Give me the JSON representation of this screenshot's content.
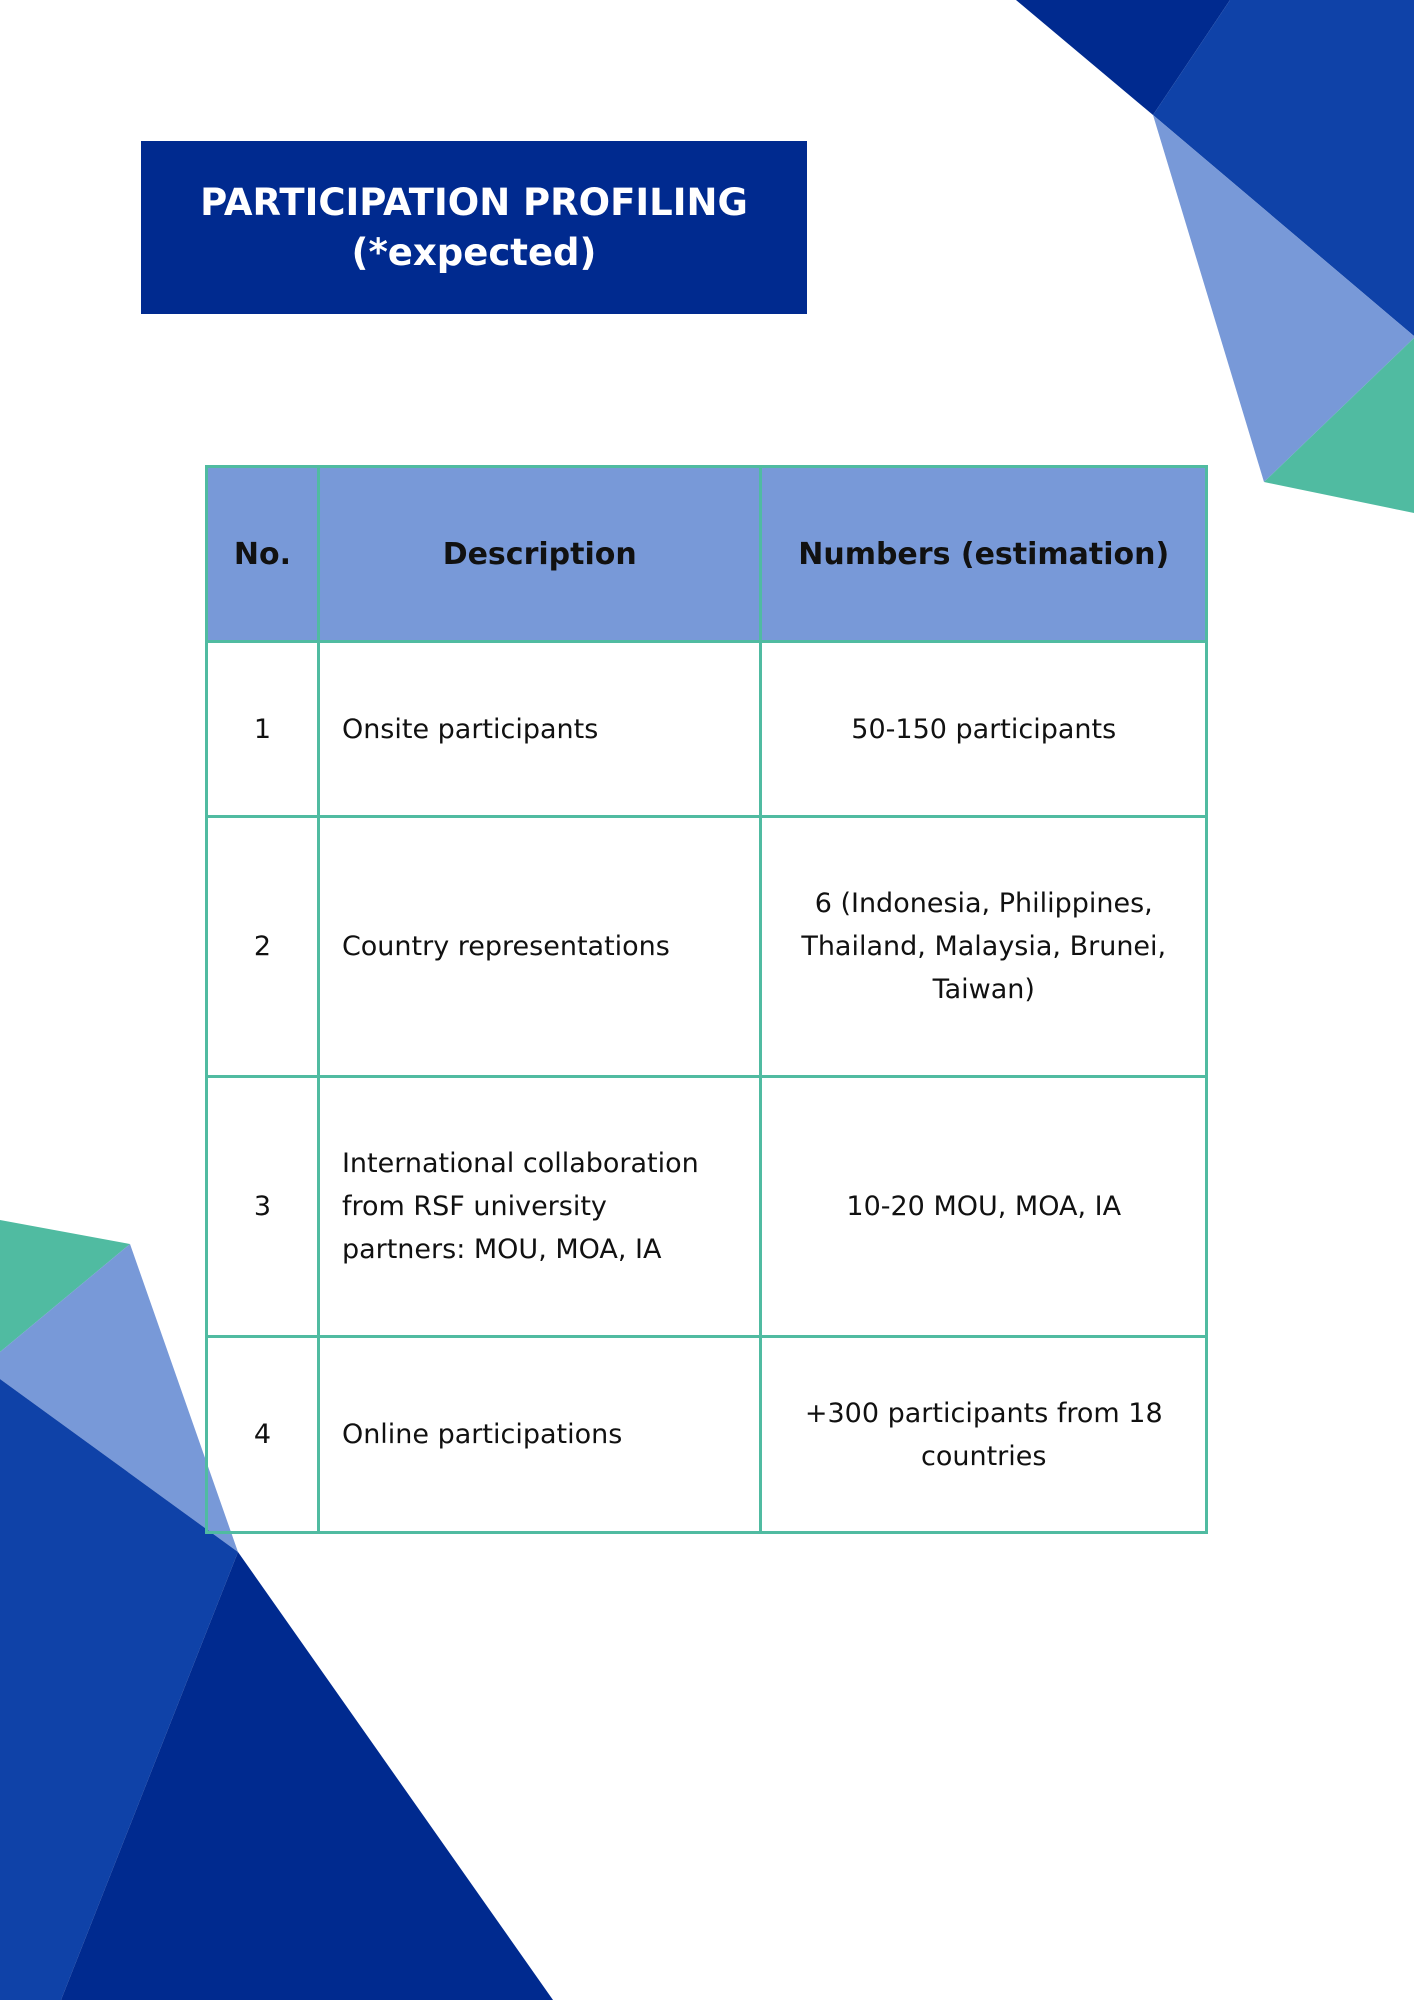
{
  "title": {
    "line1": "PARTICIPATION PROFILING",
    "line2": "(*expected)"
  },
  "colors": {
    "navy": "#002a8f",
    "blue": "#0f42a8",
    "light_blue": "#7899d8",
    "green": "#50bba1"
  },
  "table": {
    "headers": [
      "No.",
      "Description",
      "Numbers (estimation)"
    ],
    "rows": [
      {
        "no": "1",
        "description": "Onsite participants",
        "numbers": "50-150 participants"
      },
      {
        "no": "2",
        "description": "Country representations",
        "numbers": "6 (Indonesia, Philippines, Thailand, Malaysia, Brunei, Taiwan)"
      },
      {
        "no": "3",
        "description": "International collaboration from RSF university partners: MOU, MOA, IA",
        "numbers": "10-20 MOU, MOA, IA"
      },
      {
        "no": "4",
        "description": "Online participations",
        "numbers": "+300 participants from 18 countries"
      }
    ]
  }
}
